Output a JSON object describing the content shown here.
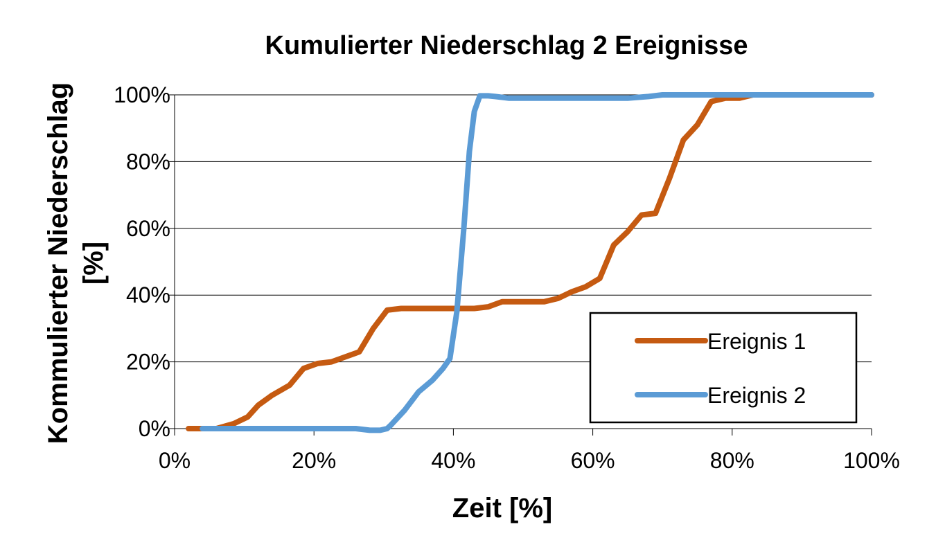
{
  "chart_data": {
    "type": "line",
    "title": "Kumulierter Niederschlag 2 Ereignisse",
    "xlabel": "Zeit [%]",
    "ylabel_line1": "Kommulierter Niederschlag",
    "ylabel_line2": "[%]",
    "xlim": [
      0,
      100
    ],
    "ylim": [
      0,
      100
    ],
    "x_ticks": [
      0,
      20,
      40,
      60,
      80,
      100
    ],
    "y_ticks": [
      0,
      20,
      40,
      60,
      80,
      100
    ],
    "x_tick_labels": [
      "0%",
      "20%",
      "40%",
      "60%",
      "80%",
      "100%"
    ],
    "y_tick_labels": [
      "0%",
      "20%",
      "40%",
      "60%",
      "80%",
      "100%"
    ],
    "grid": "horizontal",
    "legend_position": "bottom-right",
    "series": [
      {
        "name": "Ereignis 1",
        "color": "#c55a11",
        "x": [
          2,
          4,
          6,
          8.5,
          10.5,
          12,
          14,
          16.5,
          18.5,
          20.5,
          22.5,
          24.5,
          26.5,
          28.5,
          30.5,
          32.5,
          36.5,
          40.5,
          43,
          45,
          47,
          49,
          51,
          53,
          55,
          57,
          59,
          61,
          63,
          65,
          67,
          69,
          71,
          73,
          75,
          77,
          79,
          81,
          83,
          85,
          90,
          95,
          100
        ],
        "y": [
          0,
          0,
          0,
          1.5,
          3.5,
          7,
          10,
          13,
          18,
          19.5,
          20,
          21.5,
          23,
          30,
          35.5,
          36,
          36,
          36,
          36,
          36.5,
          38,
          38,
          38,
          38,
          39,
          41,
          42.5,
          45,
          55,
          59,
          64,
          64.5,
          75,
          86.5,
          91,
          98,
          99,
          99,
          100,
          100,
          100,
          100,
          100
        ]
      },
      {
        "name": "Ereignis 2",
        "color": "#5b9bd5",
        "x": [
          4,
          6,
          26,
          28,
          29.5,
          30.5,
          31,
          33,
          35,
          37,
          38.5,
          39.5,
          40.5,
          41.5,
          42.3,
          43,
          43.8,
          45,
          46,
          48,
          50,
          55,
          60,
          65,
          68,
          70,
          75,
          100
        ],
        "y": [
          0,
          0,
          0,
          -0.5,
          -0.5,
          0,
          1,
          5.5,
          11,
          14.5,
          18,
          21,
          35,
          60,
          83,
          95,
          99.7,
          99.7,
          99.5,
          99,
          99,
          99,
          99,
          99,
          99.5,
          100,
          100,
          100
        ]
      }
    ]
  }
}
